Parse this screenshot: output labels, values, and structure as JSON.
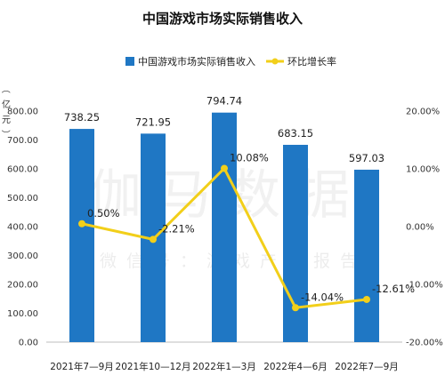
{
  "chart_data": {
    "type": "bar+line",
    "title": "中国游戏市场实际销售收入",
    "categories": [
      "2021年7—9月",
      "2021年10—12月",
      "2022年1—3月",
      "2022年4—6月",
      "2022年7—9月"
    ],
    "series": [
      {
        "name": "中国游戏市场实际销售收入",
        "type": "bar",
        "axis": "left",
        "color": "#1f77c4",
        "values": [
          738.25,
          721.95,
          794.74,
          683.15,
          597.03
        ],
        "labels": [
          "738.25",
          "721.95",
          "794.74",
          "683.15",
          "597.03"
        ]
      },
      {
        "name": "环比增长率",
        "type": "line",
        "axis": "right",
        "color": "#f2cf1a",
        "values": [
          0.5,
          -2.21,
          10.08,
          -14.04,
          -12.61
        ],
        "labels": [
          "0.50%",
          "-2.21%",
          "10.08%",
          "-14.04%",
          "-12.61%"
        ]
      }
    ],
    "y_left": {
      "label": "（亿元）",
      "ylim": [
        0,
        800
      ],
      "ticks": [
        "0.00",
        "100.00",
        "200.00",
        "300.00",
        "400.00",
        "500.00",
        "600.00",
        "700.00",
        "800.00"
      ]
    },
    "y_right": {
      "ylim": [
        -20,
        20
      ],
      "ticks": [
        "-20.00%",
        "-10.00%",
        "0.00%",
        "10.00%",
        "20.00%"
      ]
    },
    "legend_position": "top",
    "grid": false
  },
  "watermark": {
    "main": "伽马数据",
    "sub": "微信号：游戏产业报告"
  }
}
